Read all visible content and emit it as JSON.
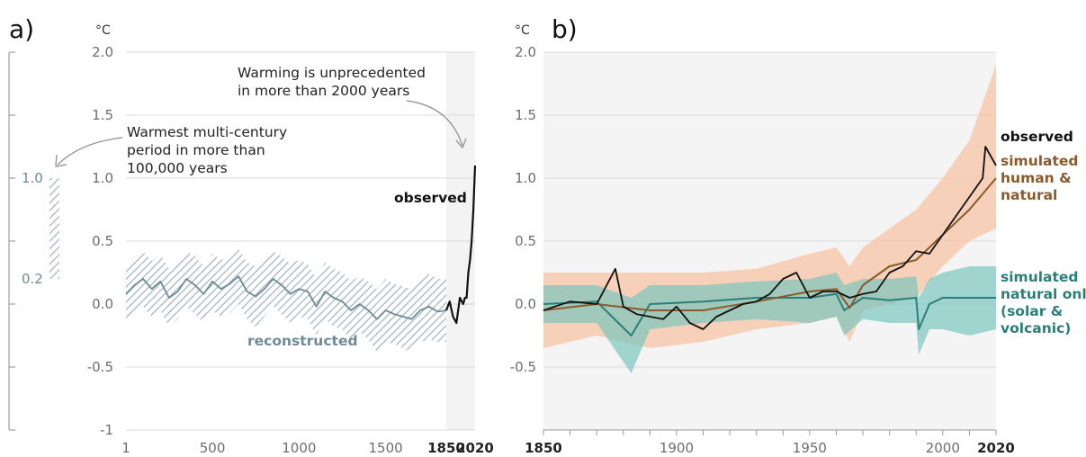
{
  "chart_data": [
    {
      "panel": "a)",
      "type": "line",
      "unit_label": "°C",
      "ylim": [
        -1,
        2
      ],
      "yticks": [
        "2.0",
        "1.5",
        "1.0",
        "0.5",
        "0.0",
        "-0.5",
        "-1"
      ],
      "xticks": [
        "1",
        "500",
        "1000",
        "1500",
        "1850",
        "2020"
      ],
      "bold_xticks": [
        "1850",
        "2020"
      ],
      "annotations": {
        "unprecedented": [
          "Warming is unprecedented",
          "in more than 2000 years"
        ],
        "warmest": [
          "Warmest multi-century",
          "period in more than",
          "100,000 years"
        ],
        "observed_label": "observed",
        "reconstructed_label": "reconstructed"
      },
      "side_bar": {
        "low": 0.2,
        "high": 1.0,
        "low_label": "0.2",
        "high_label": "1.0"
      },
      "series": [
        {
          "name": "reconstructed",
          "color": "#6f8a99",
          "x": [
            1,
            50,
            100,
            150,
            200,
            250,
            300,
            350,
            400,
            450,
            500,
            550,
            600,
            650,
            700,
            750,
            800,
            850,
            900,
            950,
            1000,
            1050,
            1100,
            1150,
            1200,
            1250,
            1300,
            1350,
            1400,
            1450,
            1500,
            1550,
            1600,
            1650,
            1700,
            1750,
            1800,
            1850
          ],
          "y": [
            0.08,
            0.15,
            0.2,
            0.12,
            0.18,
            0.05,
            0.1,
            0.2,
            0.15,
            0.08,
            0.18,
            0.12,
            0.16,
            0.22,
            0.1,
            0.06,
            0.12,
            0.2,
            0.15,
            0.08,
            0.12,
            0.1,
            -0.02,
            0.1,
            0.05,
            0.02,
            -0.05,
            0.0,
            -0.05,
            -0.12,
            -0.05,
            -0.08,
            -0.1,
            -0.12,
            -0.05,
            -0.02,
            -0.06,
            -0.05
          ],
          "band_lower": [
            -0.12,
            -0.06,
            -0.02,
            -0.1,
            -0.05,
            -0.18,
            -0.12,
            -0.02,
            -0.08,
            -0.15,
            -0.05,
            -0.1,
            -0.07,
            0.0,
            -0.12,
            -0.18,
            -0.1,
            -0.02,
            -0.08,
            -0.15,
            -0.1,
            -0.12,
            -0.25,
            -0.12,
            -0.18,
            -0.2,
            -0.28,
            -0.22,
            -0.28,
            -0.38,
            -0.3,
            -0.32,
            -0.35,
            -0.38,
            -0.3,
            -0.28,
            -0.3,
            -0.3
          ],
          "band_upper": [
            0.3,
            0.38,
            0.42,
            0.34,
            0.4,
            0.28,
            0.33,
            0.42,
            0.38,
            0.3,
            0.4,
            0.35,
            0.38,
            0.44,
            0.33,
            0.3,
            0.35,
            0.42,
            0.38,
            0.32,
            0.35,
            0.32,
            0.2,
            0.33,
            0.28,
            0.25,
            0.18,
            0.22,
            0.18,
            0.12,
            0.2,
            0.16,
            0.14,
            0.12,
            0.2,
            0.24,
            0.2,
            0.2
          ]
        },
        {
          "name": "observed",
          "color": "#111111",
          "x": [
            1850,
            1870,
            1890,
            1910,
            1930,
            1950,
            1960,
            1970,
            1980,
            1990,
            2000,
            2010,
            2020
          ],
          "y": [
            -0.05,
            0.02,
            -0.1,
            -0.15,
            0.05,
            0.0,
            0.05,
            0.05,
            0.25,
            0.35,
            0.5,
            0.75,
            1.1
          ]
        }
      ]
    },
    {
      "panel": "b)",
      "type": "line",
      "unit_label": "°C",
      "xlim": [
        1850,
        2020
      ],
      "ylim": [
        -1,
        2
      ],
      "yticks": [
        "2.0",
        "1.5",
        "1.0",
        "0.5",
        "0.0",
        "-0.5"
      ],
      "xticks": [
        "1850",
        "1900",
        "1950",
        "2000",
        "2020"
      ],
      "bold_xticks": [
        "1850",
        "2020"
      ],
      "series": [
        {
          "name": "observed",
          "label_lines": [
            "observed"
          ],
          "color": "#111111",
          "x": [
            1850,
            1860,
            1870,
            1877,
            1880,
            1885,
            1890,
            1895,
            1900,
            1905,
            1910,
            1915,
            1920,
            1925,
            1930,
            1935,
            1940,
            1945,
            1950,
            1955,
            1960,
            1965,
            1970,
            1975,
            1980,
            1985,
            1990,
            1995,
            2000,
            2005,
            2010,
            2015,
            2016,
            2020
          ],
          "y": [
            -0.05,
            0.02,
            0.0,
            0.28,
            -0.02,
            -0.08,
            -0.1,
            -0.12,
            -0.02,
            -0.15,
            -0.2,
            -0.1,
            -0.05,
            0.0,
            0.02,
            0.08,
            0.2,
            0.25,
            0.05,
            0.1,
            0.1,
            0.05,
            0.08,
            0.1,
            0.25,
            0.3,
            0.42,
            0.4,
            0.55,
            0.7,
            0.85,
            1.0,
            1.25,
            1.1
          ]
        },
        {
          "name": "simulated human & natural",
          "label_lines": [
            "simulated",
            "human &",
            "natural"
          ],
          "color": "#8b5a2b",
          "band_color": "#f7c4a5",
          "x": [
            1850,
            1870,
            1890,
            1910,
            1930,
            1950,
            1960,
            1965,
            1970,
            1980,
            1990,
            2000,
            2010,
            2020
          ],
          "y": [
            -0.05,
            0.0,
            -0.05,
            -0.05,
            0.02,
            0.1,
            0.12,
            -0.03,
            0.15,
            0.3,
            0.35,
            0.55,
            0.75,
            1.0
          ],
          "band_lower": [
            -0.35,
            -0.25,
            -0.35,
            -0.3,
            -0.2,
            -0.15,
            -0.1,
            -0.3,
            -0.05,
            0.0,
            0.05,
            0.3,
            0.5,
            0.6
          ],
          "band_upper": [
            0.25,
            0.25,
            0.25,
            0.25,
            0.28,
            0.4,
            0.45,
            0.3,
            0.45,
            0.6,
            0.75,
            1.0,
            1.3,
            1.9
          ]
        },
        {
          "name": "simulated natural only (solar & volcanic)",
          "label_lines": [
            "simulated",
            "natural only",
            "(solar &",
            "volcanic)"
          ],
          "color": "#2a7f7a",
          "band_color": "#7cc6bd",
          "x": [
            1850,
            1870,
            1883,
            1890,
            1910,
            1930,
            1950,
            1960,
            1963,
            1970,
            1980,
            1990,
            1991,
            1995,
            2000,
            2010,
            2020
          ],
          "y": [
            0.0,
            0.02,
            -0.25,
            0.0,
            0.02,
            0.05,
            0.05,
            0.08,
            -0.05,
            0.05,
            0.03,
            0.05,
            -0.2,
            0.0,
            0.05,
            0.05,
            0.05
          ],
          "band_lower": [
            -0.15,
            -0.15,
            -0.55,
            -0.2,
            -0.15,
            -0.12,
            -0.15,
            -0.1,
            -0.25,
            -0.12,
            -0.15,
            -0.15,
            -0.4,
            -0.2,
            -0.2,
            -0.25,
            -0.2
          ],
          "band_upper": [
            0.15,
            0.15,
            0.05,
            0.15,
            0.15,
            0.18,
            0.2,
            0.25,
            0.15,
            0.2,
            0.2,
            0.22,
            0.05,
            0.2,
            0.25,
            0.3,
            0.3
          ]
        }
      ]
    }
  ]
}
